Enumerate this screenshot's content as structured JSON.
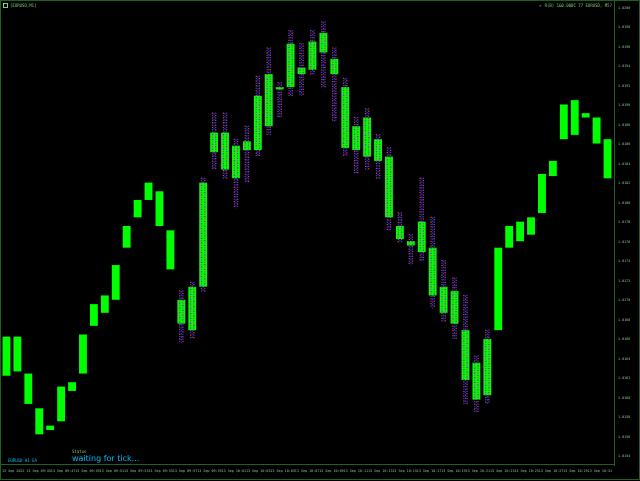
{
  "window": {
    "symbol_label": "[EURUSD,M1]",
    "info_label": "R(B) 1&0.000C 77 EURUSD, M5?",
    "accent": "#00ff00"
  },
  "status": {
    "caption": "Status",
    "text": "waiting for tick..."
  },
  "bottom_tag": "EURUSD H1 EA",
  "price_axis": {
    "labels": [
      "1.0200",
      "1.0198",
      "1.0196",
      "1.0194",
      "1.0192",
      "1.0190",
      "1.0188",
      "1.0186",
      "1.0184",
      "1.0182",
      "1.0180",
      "1.0178",
      "1.0176",
      "1.0174",
      "1.0172",
      "1.0170",
      "1.0168",
      "1.0166",
      "1.0164",
      "1.0162",
      "1.0160",
      "1.0158",
      "1.0156",
      "1.0154"
    ]
  },
  "time_axis": {
    "labels": [
      "13 Sep 2022",
      "13 Sep 09:45",
      "13 Sep 09:47",
      "13 Sep 09:49",
      "13 Sep 09:51",
      "13 Sep 09:53",
      "13 Sep 09:55",
      "13 Sep 09:57",
      "13 Sep 09:59",
      "13 Sep 10:01",
      "13 Sep 10:03",
      "13 Sep 10:05",
      "13 Sep 10:07",
      "13 Sep 10:09",
      "13 Sep 10:11",
      "13 Sep 10:13",
      "13 Sep 10:15",
      "13 Sep 10:17",
      "13 Sep 10:19",
      "13 Sep 10:21",
      "13 Sep 10:23",
      "13 Sep 10:25",
      "13 Sep 10:27",
      "13 Sep 10:29",
      "13 Sep 10:31"
    ]
  },
  "chart_data": {
    "type": "bar",
    "ylim": [
      0,
      100
    ],
    "colors": {
      "body": "#00ff00",
      "dot_red": "#ff3030",
      "dot_blue": "#3040ff",
      "dot_cyan": "#00e0ff"
    },
    "bars": [
      {
        "o": 15.5,
        "c": 24.5,
        "hi": 25.5,
        "lo": 14
      },
      {
        "o": 24.5,
        "c": 16.5,
        "hi": 25,
        "lo": 9
      },
      {
        "o": 9,
        "c": 16,
        "hi": 16.5,
        "lo": 8.5
      },
      {
        "o": 8,
        "c": 2,
        "hi": 8,
        "lo": 1.5
      },
      {
        "o": 4,
        "c": 3,
        "hi": 4.5,
        "lo": 2.5
      },
      {
        "o": 13,
        "c": 5,
        "hi": 13.5,
        "lo": 4.5
      },
      {
        "o": 14,
        "c": 12,
        "hi": 14.5,
        "lo": 11.5
      },
      {
        "o": 16,
        "c": 25,
        "hi": 25.5,
        "lo": 15
      },
      {
        "o": 32,
        "c": 27,
        "hi": 32.5,
        "lo": 26
      },
      {
        "o": 30,
        "c": 34,
        "hi": 34.5,
        "lo": 29
      },
      {
        "o": 41,
        "c": 33,
        "hi": 41.5,
        "lo": 32
      },
      {
        "o": 45,
        "c": 50,
        "hi": 50.5,
        "lo": 44
      },
      {
        "o": 52,
        "c": 56,
        "hi": 56.5,
        "lo": 51
      },
      {
        "o": 56,
        "c": 60,
        "hi": 60.5,
        "lo": 55
      },
      {
        "o": 58,
        "c": 50,
        "hi": 58.5,
        "lo": 49
      },
      {
        "o": 49,
        "c": 40,
        "hi": 49.5,
        "lo": 39
      },
      {
        "o": 33,
        "c": 27.5,
        "hi": 35,
        "lo": 23,
        "dots": true
      },
      {
        "o": 26,
        "c": 36,
        "hi": 37,
        "lo": 24,
        "dots": true
      },
      {
        "o": 36,
        "c": 60,
        "hi": 61,
        "lo": 35,
        "dots": true
      },
      {
        "o": 67,
        "c": 71.5,
        "hi": 76,
        "lo": 63,
        "dots": true
      },
      {
        "o": 71.5,
        "c": 63,
        "hi": 76,
        "lo": 61,
        "dots": true
      },
      {
        "o": 61,
        "c": 68.5,
        "hi": 70,
        "lo": 54,
        "dots": true
      },
      {
        "o": 69.5,
        "c": 67.5,
        "hi": 73,
        "lo": 60,
        "dots": true
      },
      {
        "o": 80,
        "c": 67.5,
        "hi": 84.5,
        "lo": 66,
        "dots": true
      },
      {
        "o": 73,
        "c": 85,
        "hi": 91,
        "lo": 71,
        "dots": true
      },
      {
        "o": 82,
        "c": 81.5,
        "hi": 83,
        "lo": 75,
        "dots": true
      },
      {
        "o": 82,
        "c": 92,
        "hi": 95,
        "lo": 80,
        "dots": true
      },
      {
        "o": 85,
        "c": 86.5,
        "hi": 92,
        "lo": 80,
        "dots": true
      },
      {
        "o": 86,
        "c": 92.5,
        "hi": 95,
        "lo": 85,
        "dots": true
      },
      {
        "o": 90,
        "c": 94.5,
        "hi": 97,
        "lo": 82,
        "dots": true
      },
      {
        "o": 85,
        "c": 88.5,
        "hi": 91,
        "lo": 74,
        "dots": true
      },
      {
        "o": 82,
        "c": 68,
        "hi": 84,
        "lo": 66,
        "dots": true
      },
      {
        "o": 73,
        "c": 67.5,
        "hi": 75,
        "lo": 62,
        "dots": true
      },
      {
        "o": 75,
        "c": 66,
        "hi": 77,
        "lo": 63,
        "dots": true
      },
      {
        "o": 70,
        "c": 65,
        "hi": 71,
        "lo": 61,
        "dots": true
      },
      {
        "o": 66,
        "c": 52,
        "hi": 68,
        "lo": 49,
        "dots": true
      },
      {
        "o": 50,
        "c": 47,
        "hi": 53,
        "lo": 46,
        "dots": true
      },
      {
        "o": 46.5,
        "c": 45.5,
        "hi": 48,
        "lo": 41,
        "dots": true
      },
      {
        "o": 51,
        "c": 44,
        "hi": 61,
        "lo": 42,
        "dots": true
      },
      {
        "o": 45,
        "c": 34,
        "hi": 52,
        "lo": 31,
        "dots": true
      },
      {
        "o": 36,
        "c": 30,
        "hi": 42,
        "lo": 28,
        "dots": true
      },
      {
        "o": 35,
        "c": 27.5,
        "hi": 38,
        "lo": 24,
        "dots": true
      },
      {
        "o": 26,
        "c": 14.5,
        "hi": 34,
        "lo": 9,
        "dots": true
      },
      {
        "o": 18.5,
        "c": 10,
        "hi": 20,
        "lo": 7,
        "dots": true
      },
      {
        "o": 11,
        "c": 24,
        "hi": 26,
        "lo": 9,
        "dots": true
      },
      {
        "o": 26,
        "c": 45,
        "hi": 46,
        "lo": 25
      },
      {
        "o": 45,
        "c": 50,
        "hi": 51,
        "lo": 44
      },
      {
        "o": 51,
        "c": 46.5,
        "hi": 52,
        "lo": 46
      },
      {
        "o": 52,
        "c": 48,
        "hi": 53,
        "lo": 47
      },
      {
        "o": 53,
        "c": 62,
        "hi": 63,
        "lo": 52
      },
      {
        "o": 65,
        "c": 61.5,
        "hi": 66,
        "lo": 61
      },
      {
        "o": 78,
        "c": 70,
        "hi": 79,
        "lo": 69
      },
      {
        "o": 79,
        "c": 71,
        "hi": 80,
        "lo": 70
      },
      {
        "o": 76,
        "c": 75,
        "hi": 76.5,
        "lo": 74.5
      },
      {
        "o": 75,
        "c": 69,
        "hi": 76,
        "lo": 68
      },
      {
        "o": 70,
        "c": 61,
        "hi": 71,
        "lo": 60
      }
    ]
  }
}
